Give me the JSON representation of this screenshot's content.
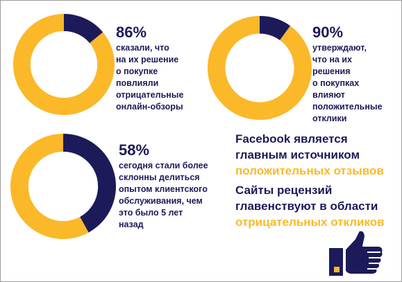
{
  "colors": {
    "navy": "#1c1a59",
    "yellow": "#fbb829",
    "text": "#1c1a59"
  },
  "chart_data": [
    {
      "type": "pie",
      "donut": true,
      "values": [
        86,
        14
      ],
      "highlight_value": 86,
      "label": "86%",
      "description": "сказали, что\nна их решение\nо покупке\nповлияли\nотрицательные\nонлайн-обзоры"
    },
    {
      "type": "pie",
      "donut": true,
      "values": [
        90,
        10
      ],
      "highlight_value": 90,
      "label": "90%",
      "description": "утверждают,\nчто на их\nрешения\nо покупках\nвлияют\nположительные\nотклики"
    },
    {
      "type": "pie",
      "donut": true,
      "values": [
        58,
        42
      ],
      "highlight_value": 58,
      "label": "58%",
      "description": "сегодня стали более\nсклонны делиться\nопытом клиентского\nобслуживания, чем\nэто было 5 лет\nназад"
    }
  ],
  "notes": {
    "facebook": {
      "line1": "Facebook является",
      "line2": "главным источником",
      "line3": "положительных отзывов"
    },
    "reviews": {
      "line1": "Сайты рецензий",
      "line2": "главенствуют в области",
      "line3": "отрицательных откликов"
    }
  },
  "icons": {
    "thumb": "thumbs-up-icon"
  }
}
